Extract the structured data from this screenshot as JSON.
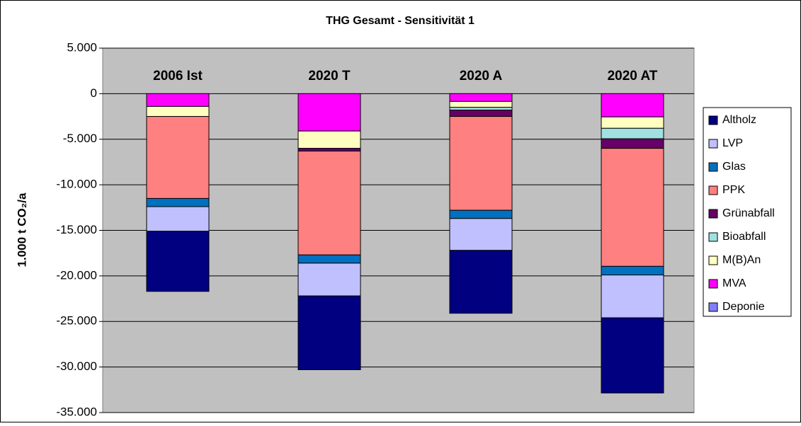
{
  "chart_data": {
    "type": "stacked_bar",
    "title": "THG Gesamt - Sensitivität 1",
    "y_label": "1.000 t CO₂/a",
    "categories": [
      "2006 Ist",
      "2020 T",
      "2020 A",
      "2020 AT"
    ],
    "series": [
      {
        "name": "Altholz",
        "color": "#000080",
        "values": [
          -6600,
          -8100,
          -6900,
          -8250
        ]
      },
      {
        "name": "LVP",
        "color": "#c0c0ff",
        "values": [
          -2700,
          -3600,
          -3500,
          -4700
        ]
      },
      {
        "name": "Glas",
        "color": "#0070c0",
        "values": [
          -900,
          -900,
          -900,
          -950
        ]
      },
      {
        "name": "PPK",
        "color": "#ff8080",
        "values": [
          -9000,
          -11400,
          -10300,
          -12950
        ]
      },
      {
        "name": "Grünabfall",
        "color": "#660066",
        "values": [
          0,
          -300,
          -700,
          -1050
        ]
      },
      {
        "name": "Bioabfall",
        "color": "#a0e0e0",
        "values": [
          0,
          0,
          -300,
          -1150
        ]
      },
      {
        "name": "M(B)An",
        "color": "#ffffc0",
        "values": [
          -1100,
          -1900,
          -650,
          -1250
        ]
      },
      {
        "name": "MVA",
        "color": "#ff00ff",
        "values": [
          -1400,
          -4100,
          -850,
          -2550
        ]
      },
      {
        "name": "Deponie",
        "color": "#8080ff",
        "values": [
          0,
          0,
          0,
          0
        ]
      }
    ],
    "ylim": [
      -35000,
      5000
    ],
    "yticks": [
      {
        "value": -35000,
        "label": "-35.000"
      },
      {
        "value": -30000,
        "label": "-30.000"
      },
      {
        "value": -25000,
        "label": "-25.000"
      },
      {
        "value": -20000,
        "label": "-20.000"
      },
      {
        "value": -15000,
        "label": "-15.000"
      },
      {
        "value": -10000,
        "label": "-10.000"
      },
      {
        "value": -5000,
        "label": "-5.000"
      },
      0,
      {
        "value": 5000,
        "label": "5.000"
      }
    ],
    "grid": true,
    "legend": "right",
    "plot_background": "#c0c0c0"
  }
}
